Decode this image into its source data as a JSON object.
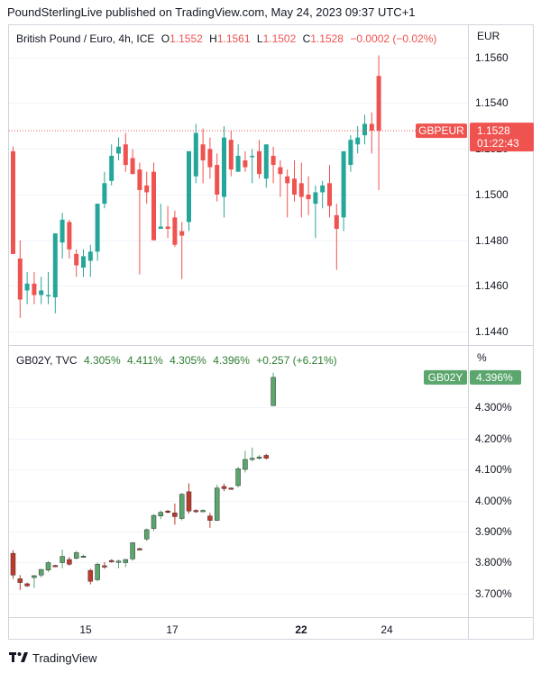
{
  "header": {
    "text": "PoundSterlingLive published on TradingView.com, May 24, 2023 09:37 UTC+1"
  },
  "footer": {
    "brand": "TradingView"
  },
  "colors": {
    "up": "#26a69a",
    "down": "#ef5350",
    "up2": "#5aa66c",
    "down2": "#c0392b",
    "grid": "#f0f3fa",
    "border": "#d1d4dc"
  },
  "chart_data": [
    {
      "type": "candlestick",
      "legend": {
        "title": "British Pound / Euro, 4h, ICE",
        "o_label": "O",
        "o": "1.1552",
        "h_label": "H",
        "h": "1.1561",
        "l_label": "L",
        "l": "1.1502",
        "c_label": "C",
        "c": "1.1528",
        "change": "−0.0002 (−0.02%)"
      },
      "currency": "EUR",
      "ylim": [
        1.1436,
        1.1576
      ],
      "yticks": [
        "1.1560",
        "1.1540",
        "1.1520",
        "1.1500",
        "1.1480",
        "1.1460",
        "1.1440"
      ],
      "last_price_tag": {
        "symbol": "GBPEUR",
        "price": "1.1528",
        "countdown": "01:22:43"
      },
      "candles": [
        {
          "o": 1.1519,
          "h": 1.1521,
          "l": 1.1474,
          "c": 1.1474
        },
        {
          "o": 1.1472,
          "h": 1.148,
          "l": 1.1446,
          "c": 1.1454
        },
        {
          "o": 1.1458,
          "h": 1.1466,
          "l": 1.1452,
          "c": 1.1461
        },
        {
          "o": 1.1461,
          "h": 1.1466,
          "l": 1.1452,
          "c": 1.1456
        },
        {
          "o": 1.1456,
          "h": 1.1464,
          "l": 1.1452,
          "c": 1.1458
        },
        {
          "o": 1.1456,
          "h": 1.1466,
          "l": 1.1452,
          "c": 1.1456
        },
        {
          "o": 1.1455,
          "h": 1.1483,
          "l": 1.1448,
          "c": 1.1483
        },
        {
          "o": 1.1479,
          "h": 1.1492,
          "l": 1.1472,
          "c": 1.1489
        },
        {
          "o": 1.1488,
          "h": 1.1489,
          "l": 1.1472,
          "c": 1.1476
        },
        {
          "o": 1.1474,
          "h": 1.1476,
          "l": 1.1464,
          "c": 1.1469
        },
        {
          "o": 1.1468,
          "h": 1.1476,
          "l": 1.1464,
          "c": 1.1473
        },
        {
          "o": 1.1471,
          "h": 1.1478,
          "l": 1.1464,
          "c": 1.1475
        },
        {
          "o": 1.1475,
          "h": 1.1496,
          "l": 1.1471,
          "c": 1.1496
        },
        {
          "o": 1.1496,
          "h": 1.151,
          "l": 1.1494,
          "c": 1.1505
        },
        {
          "o": 1.1506,
          "h": 1.1522,
          "l": 1.1504,
          "c": 1.1517
        },
        {
          "o": 1.1518,
          "h": 1.1525,
          "l": 1.1515,
          "c": 1.1521
        },
        {
          "o": 1.1522,
          "h": 1.1527,
          "l": 1.151,
          "c": 1.1513
        },
        {
          "o": 1.1516,
          "h": 1.152,
          "l": 1.1509,
          "c": 1.1509
        },
        {
          "o": 1.1511,
          "h": 1.1514,
          "l": 1.1465,
          "c": 1.1502
        },
        {
          "o": 1.1504,
          "h": 1.151,
          "l": 1.1496,
          "c": 1.1501
        },
        {
          "o": 1.151,
          "h": 1.1514,
          "l": 1.148,
          "c": 1.148
        },
        {
          "o": 1.1485,
          "h": 1.1496,
          "l": 1.1485,
          "c": 1.1486
        },
        {
          "o": 1.1486,
          "h": 1.1495,
          "l": 1.1481,
          "c": 1.1485
        },
        {
          "o": 1.149,
          "h": 1.1493,
          "l": 1.1477,
          "c": 1.1478
        },
        {
          "o": 1.1484,
          "h": 1.1488,
          "l": 1.1463,
          "c": 1.1482
        },
        {
          "o": 1.1488,
          "h": 1.1519,
          "l": 1.1484,
          "c": 1.1519
        },
        {
          "o": 1.1508,
          "h": 1.1531,
          "l": 1.1505,
          "c": 1.1527
        },
        {
          "o": 1.1522,
          "h": 1.1529,
          "l": 1.1505,
          "c": 1.1515
        },
        {
          "o": 1.152,
          "h": 1.1525,
          "l": 1.1507,
          "c": 1.1512
        },
        {
          "o": 1.1513,
          "h": 1.1518,
          "l": 1.1497,
          "c": 1.15
        },
        {
          "o": 1.1499,
          "h": 1.153,
          "l": 1.149,
          "c": 1.1525
        },
        {
          "o": 1.1524,
          "h": 1.1528,
          "l": 1.1508,
          "c": 1.1511
        },
        {
          "o": 1.151,
          "h": 1.1522,
          "l": 1.151,
          "c": 1.1517
        },
        {
          "o": 1.1515,
          "h": 1.1519,
          "l": 1.151,
          "c": 1.1512
        },
        {
          "o": 1.1517,
          "h": 1.152,
          "l": 1.1505,
          "c": 1.1517
        },
        {
          "o": 1.1519,
          "h": 1.1524,
          "l": 1.1507,
          "c": 1.1509
        },
        {
          "o": 1.1507,
          "h": 1.1522,
          "l": 1.1503,
          "c": 1.1522
        },
        {
          "o": 1.1517,
          "h": 1.1521,
          "l": 1.1505,
          "c": 1.1513
        },
        {
          "o": 1.1512,
          "h": 1.1515,
          "l": 1.1499,
          "c": 1.1509
        },
        {
          "o": 1.1508,
          "h": 1.1511,
          "l": 1.149,
          "c": 1.1505
        },
        {
          "o": 1.1507,
          "h": 1.1515,
          "l": 1.1497,
          "c": 1.15
        },
        {
          "o": 1.1505,
          "h": 1.1514,
          "l": 1.149,
          "c": 1.1499
        },
        {
          "o": 1.15,
          "h": 1.1508,
          "l": 1.1491,
          "c": 1.1498
        },
        {
          "o": 1.1496,
          "h": 1.1504,
          "l": 1.1481,
          "c": 1.1501
        },
        {
          "o": 1.1501,
          "h": 1.1506,
          "l": 1.1494,
          "c": 1.1504
        },
        {
          "o": 1.1505,
          "h": 1.1513,
          "l": 1.149,
          "c": 1.1495
        },
        {
          "o": 1.1491,
          "h": 1.1496,
          "l": 1.1467,
          "c": 1.1485
        },
        {
          "o": 1.149,
          "h": 1.1519,
          "l": 1.1484,
          "c": 1.1519
        },
        {
          "o": 1.1513,
          "h": 1.1526,
          "l": 1.151,
          "c": 1.1524
        },
        {
          "o": 1.1522,
          "h": 1.153,
          "l": 1.1518,
          "c": 1.1525
        },
        {
          "o": 1.1526,
          "h": 1.1535,
          "l": 1.1522,
          "c": 1.1531
        },
        {
          "o": 1.1531,
          "h": 1.1536,
          "l": 1.1518,
          "c": 1.1528
        },
        {
          "o": 1.1552,
          "h": 1.1561,
          "l": 1.1502,
          "c": 1.1528
        }
      ]
    },
    {
      "type": "candlestick",
      "legend": {
        "title": "GB02Y, TVC",
        "o": "4.305%",
        "h": "4.411%",
        "l": "4.305%",
        "c": "4.396%",
        "change": "+0.257 (+6.21%)"
      },
      "currency": "%",
      "ylim": [
        3.68,
        4.43
      ],
      "yticks": [
        "4.300%",
        "4.200%",
        "4.100%",
        "4.000%",
        "3.900%",
        "3.800%",
        "3.700%"
      ],
      "last_price_tag": {
        "symbol": "GB02Y",
        "price": "4.396%"
      },
      "candles": [
        {
          "o": 3.83,
          "h": 3.84,
          "l": 3.748,
          "c": 3.76
        },
        {
          "o": 3.748,
          "h": 3.76,
          "l": 3.712,
          "c": 3.736
        },
        {
          "o": 3.732,
          "h": 3.736,
          "l": 3.722,
          "c": 3.725
        },
        {
          "o": 3.752,
          "h": 3.76,
          "l": 3.718,
          "c": 3.758
        },
        {
          "o": 3.76,
          "h": 3.78,
          "l": 3.752,
          "c": 3.778
        },
        {
          "o": 3.776,
          "h": 3.805,
          "l": 3.77,
          "c": 3.8
        },
        {
          "o": 3.791,
          "h": 3.793,
          "l": 3.786,
          "c": 3.79
        },
        {
          "o": 3.8,
          "h": 3.842,
          "l": 3.782,
          "c": 3.82
        },
        {
          "o": 3.81,
          "h": 3.818,
          "l": 3.79,
          "c": 3.795
        },
        {
          "o": 3.814,
          "h": 3.838,
          "l": 3.81,
          "c": 3.832
        },
        {
          "o": 3.82,
          "h": 3.826,
          "l": 3.816,
          "c": 3.821
        },
        {
          "o": 3.775,
          "h": 3.78,
          "l": 3.73,
          "c": 3.74
        },
        {
          "o": 3.745,
          "h": 3.8,
          "l": 3.74,
          "c": 3.795
        },
        {
          "o": 3.79,
          "h": 3.802,
          "l": 3.78,
          "c": 3.788
        },
        {
          "o": 3.807,
          "h": 3.811,
          "l": 3.8,
          "c": 3.803
        },
        {
          "o": 3.801,
          "h": 3.81,
          "l": 3.782,
          "c": 3.805
        },
        {
          "o": 3.8,
          "h": 3.812,
          "l": 3.785,
          "c": 3.81
        },
        {
          "o": 3.812,
          "h": 3.866,
          "l": 3.806,
          "c": 3.864
        },
        {
          "o": 3.845,
          "h": 3.848,
          "l": 3.84,
          "c": 3.842
        },
        {
          "o": 3.876,
          "h": 3.91,
          "l": 3.87,
          "c": 3.906
        },
        {
          "o": 3.91,
          "h": 3.956,
          "l": 3.902,
          "c": 3.952
        },
        {
          "o": 3.95,
          "h": 3.968,
          "l": 3.94,
          "c": 3.962
        },
        {
          "o": 3.966,
          "h": 3.97,
          "l": 3.958,
          "c": 3.964
        },
        {
          "o": 3.96,
          "h": 3.99,
          "l": 3.922,
          "c": 3.948
        },
        {
          "o": 3.942,
          "h": 4.024,
          "l": 3.936,
          "c": 4.02
        },
        {
          "o": 4.028,
          "h": 4.055,
          "l": 3.958,
          "c": 3.966
        },
        {
          "o": 3.968,
          "h": 3.972,
          "l": 3.96,
          "c": 3.966
        },
        {
          "o": 3.968,
          "h": 3.972,
          "l": 3.962,
          "c": 3.968
        },
        {
          "o": 3.95,
          "h": 3.96,
          "l": 3.912,
          "c": 3.936
        },
        {
          "o": 3.936,
          "h": 4.05,
          "l": 3.934,
          "c": 4.04
        },
        {
          "o": 4.045,
          "h": 4.054,
          "l": 4.03,
          "c": 4.038
        },
        {
          "o": 4.04,
          "h": 4.042,
          "l": 4.036,
          "c": 4.038
        },
        {
          "o": 4.048,
          "h": 4.108,
          "l": 4.042,
          "c": 4.102
        },
        {
          "o": 4.1,
          "h": 4.16,
          "l": 4.09,
          "c": 4.132
        },
        {
          "o": 4.132,
          "h": 4.17,
          "l": 4.126,
          "c": 4.136
        },
        {
          "o": 4.136,
          "h": 4.146,
          "l": 4.132,
          "c": 4.14
        },
        {
          "o": 4.145,
          "h": 4.15,
          "l": 4.132,
          "c": 4.136
        },
        {
          "o": 4.305,
          "h": 4.411,
          "l": 4.305,
          "c": 4.396
        }
      ]
    }
  ],
  "xaxis": {
    "ticks": [
      {
        "label": "15",
        "bold": false
      },
      {
        "label": "17",
        "bold": false
      },
      {
        "label": "22",
        "bold": true
      },
      {
        "label": "24",
        "bold": false
      }
    ]
  }
}
